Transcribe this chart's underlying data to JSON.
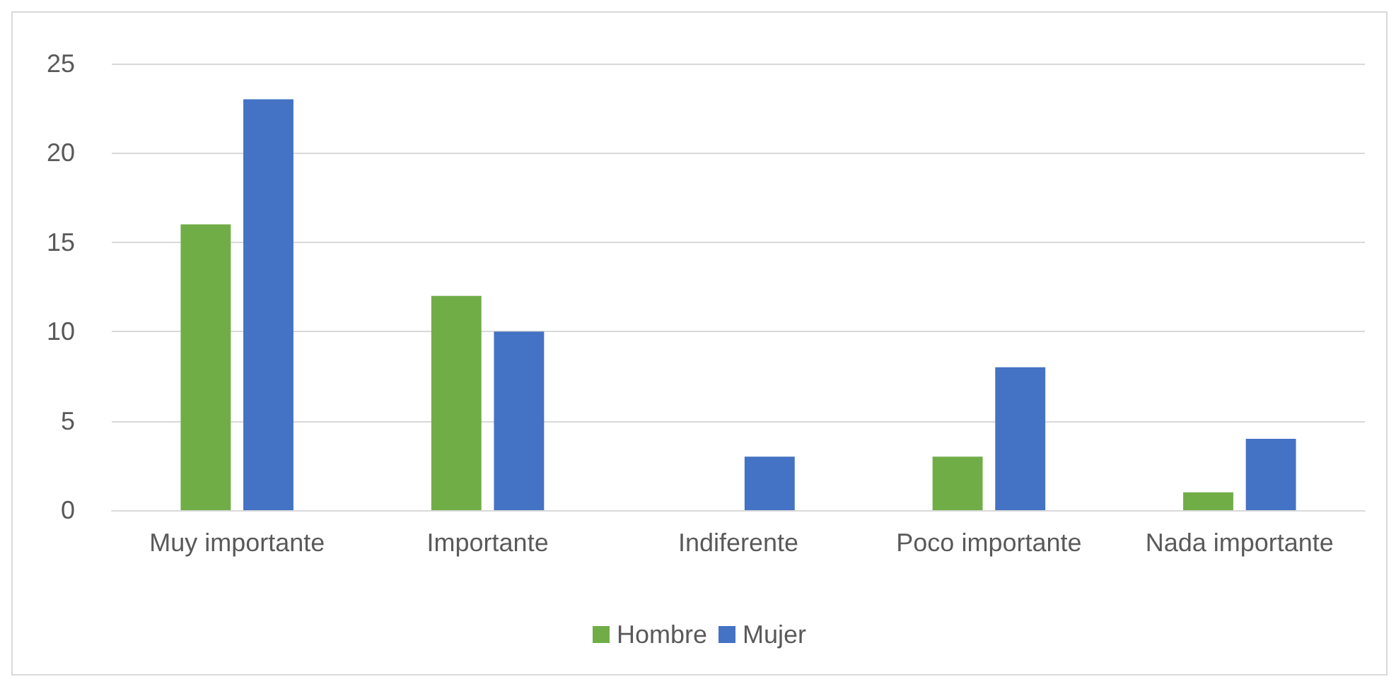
{
  "chart_data": {
    "type": "bar",
    "categories": [
      "Muy importante",
      "Importante",
      "Indiferente",
      "Poco importante",
      "Nada importante"
    ],
    "series": [
      {
        "name": "Hombre",
        "color": "#70ad47",
        "values": [
          16,
          12,
          0,
          3,
          1
        ]
      },
      {
        "name": "Mujer",
        "color": "#4472c4",
        "values": [
          23,
          10,
          3,
          8,
          4
        ]
      }
    ],
    "ylim": [
      0,
      25
    ],
    "yticks": [
      0,
      5,
      10,
      15,
      20,
      25
    ],
    "grid": "y",
    "legend": "bottom"
  }
}
